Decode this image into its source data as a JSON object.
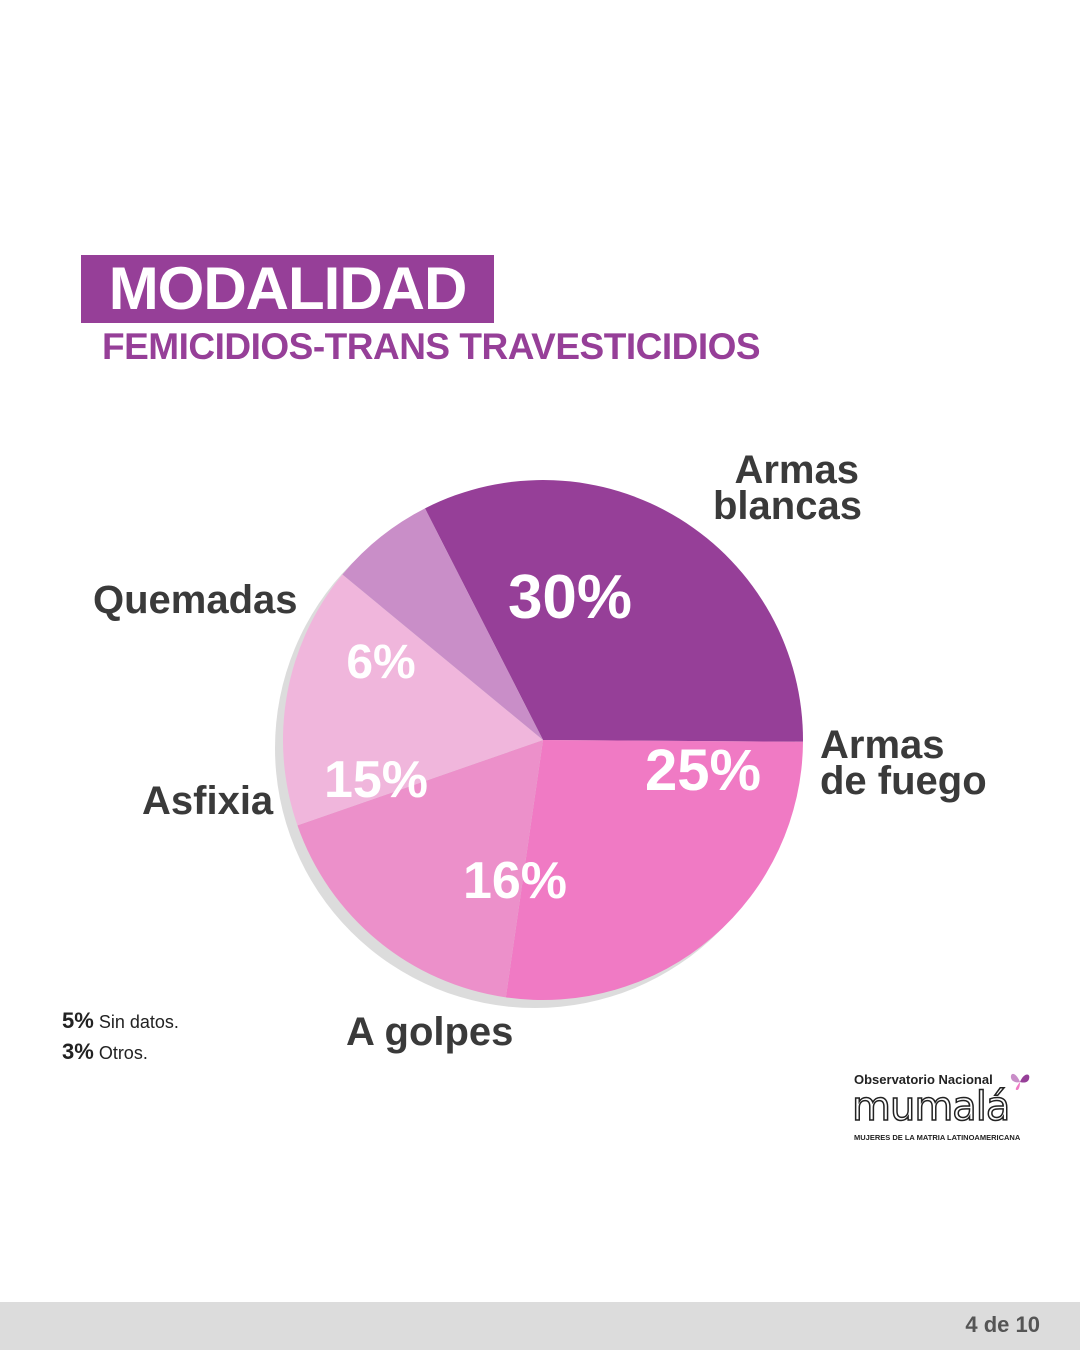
{
  "title": "MODALIDAD",
  "subtitle": "FEMICIDIOS-TRANS TRAVESTICIDIOS",
  "chart_data": {
    "type": "pie",
    "slices": [
      {
        "label_lines": [
          "Armas",
          "blancas"
        ],
        "value": 30,
        "value_label": "30%",
        "color": "#963f98"
      },
      {
        "label_lines": [
          "Armas",
          "de fuego"
        ],
        "value": 25,
        "value_label": "25%",
        "color": "#f07ac4"
      },
      {
        "label_lines": [
          "A golpes"
        ],
        "value": 16,
        "value_label": "16%",
        "color": "#ec90ca"
      },
      {
        "label_lines": [
          "Asfixia"
        ],
        "value": 15,
        "value_label": "15%",
        "color": "#f0b6dc"
      },
      {
        "label_lines": [
          "Quemadas"
        ],
        "value": 6,
        "value_label": "6%",
        "color": "#c98ec8"
      }
    ]
  },
  "notes": [
    {
      "value": "5%",
      "text": "Sin datos."
    },
    {
      "value": "3%",
      "text": "Otros."
    }
  ],
  "logo": {
    "line1": "Observatorio Nacional",
    "line2": "mumalá",
    "line3": "MUJERES DE LA MATRIA LATINOAMERICANA"
  },
  "footer": {
    "page": "4 de 10"
  }
}
